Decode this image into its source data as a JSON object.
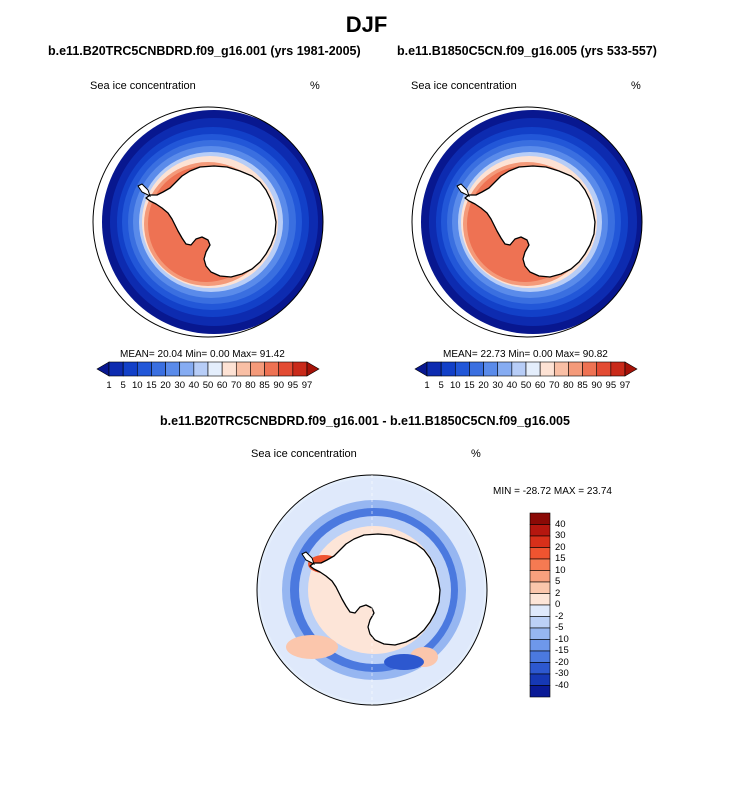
{
  "figure": {
    "title": "DJF"
  },
  "panels": [
    {
      "id": "left",
      "title": "b.e11.B20TRC5CNBDRD.f09_g16.001 (yrs 1981-2005)",
      "field_label": "Sea ice concentration",
      "units": "%",
      "stats_text": "MEAN=  20.04  Min=   0.00  Max=  91.42",
      "mean": 20.04,
      "min": 0.0,
      "max": 91.42
    },
    {
      "id": "right",
      "title": "b.e11.B1850C5CN.f09_g16.005 (yrs 533-557)",
      "field_label": "Sea ice concentration",
      "units": "%",
      "stats_text": "MEAN=  22.73  Min=   0.00  Max=  90.82",
      "mean": 22.73,
      "min": 0.0,
      "max": 90.82
    },
    {
      "id": "diff",
      "title": "b.e11.B20TRC5CNBDRD.f09_g16.001 - b.e11.B1850C5CN.f09_g16.005",
      "field_label": "Sea ice concentration",
      "units": "%",
      "stats_text": "MIN = -28.72 MAX =  23.74",
      "min": -28.72,
      "max": 23.74
    }
  ],
  "colorbar_levels": {
    "labels": [
      "1",
      "5",
      "10",
      "15",
      "20",
      "30",
      "40",
      "50",
      "60",
      "70",
      "80",
      "85",
      "90",
      "95",
      "97"
    ],
    "colors": [
      "#08178f",
      "#0d2bb0",
      "#1240c8",
      "#2257d8",
      "#3a6fe0",
      "#5a8bea",
      "#86acf2",
      "#b7cdf7",
      "#e4eefc",
      "#fde2d4",
      "#f9bfa5",
      "#f49a7a",
      "#ee7253",
      "#e34b33",
      "#c92a1a",
      "#a51208"
    ]
  },
  "diff_colorbar": {
    "labels": [
      "40",
      "30",
      "20",
      "15",
      "10",
      "5",
      "2",
      "0",
      "-2",
      "-5",
      "-10",
      "-15",
      "-20",
      "-30",
      "-40"
    ],
    "colors": [
      "#8b0a06",
      "#b5170f",
      "#d8301a",
      "#ef5430",
      "#f57a52",
      "#f8a07e",
      "#fbc6ac",
      "#fde5d8",
      "#dfe9fb",
      "#bcd1f7",
      "#96b6f1",
      "#6e98ea",
      "#4b79df",
      "#2d58cf",
      "#1638b5",
      "#0a1a96"
    ]
  },
  "map_colors": {
    "ocean": "#ffffff",
    "land": "#ffffff",
    "coast": "#000000",
    "diff_background": "#e4eefc"
  }
}
